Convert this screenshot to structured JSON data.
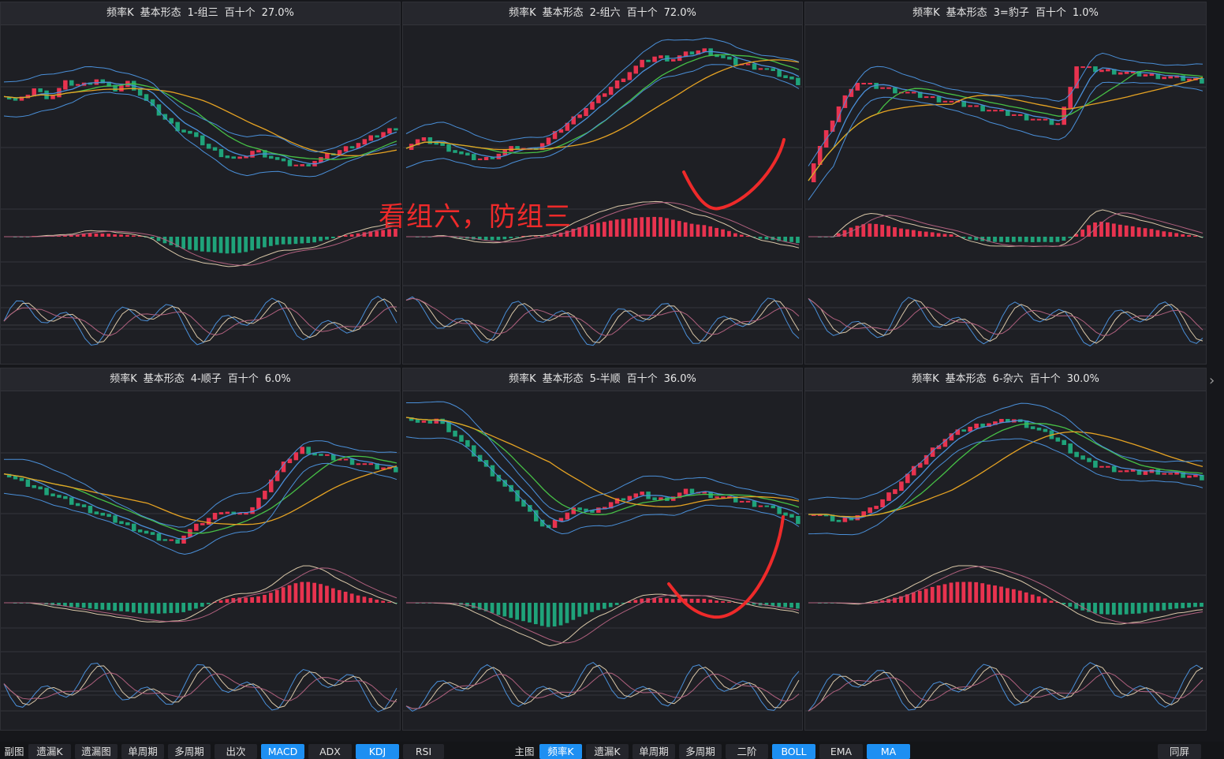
{
  "panels": [
    {
      "name": "频率K",
      "form": "基本形态",
      "pattern": "1-组三",
      "unit": "百十个",
      "pct": "27.0%"
    },
    {
      "name": "频率K",
      "form": "基本形态",
      "pattern": "2-组六",
      "unit": "百十个",
      "pct": "72.0%"
    },
    {
      "name": "频率K",
      "form": "基本形态",
      "pattern": "3=豹子",
      "unit": "百十个",
      "pct": "1.0%"
    },
    {
      "name": "频率K",
      "form": "基本形态",
      "pattern": "4-顺子",
      "unit": "百十个",
      "pct": "6.0%"
    },
    {
      "name": "频率K",
      "form": "基本形态",
      "pattern": "5-半顺",
      "unit": "百十个",
      "pct": "36.0%"
    },
    {
      "name": "频率K",
      "form": "基本形态",
      "pattern": "6-杂六",
      "unit": "百十个",
      "pct": "30.0%"
    }
  ],
  "annotation": "看组六，防组三",
  "toolbar": {
    "left_label": "副图",
    "left": [
      {
        "label": "遗漏K",
        "active": false
      },
      {
        "label": "遗漏图",
        "active": false
      },
      {
        "label": "单周期",
        "active": false
      },
      {
        "label": "多周期",
        "active": false
      },
      {
        "label": "出次",
        "active": false
      },
      {
        "label": "MACD",
        "active": true
      },
      {
        "label": "ADX",
        "active": false
      },
      {
        "label": "KDJ",
        "active": true
      },
      {
        "label": "RSI",
        "active": false
      }
    ],
    "right_label": "主图",
    "right": [
      {
        "label": "频率K",
        "active": true
      },
      {
        "label": "遗漏K",
        "active": false
      },
      {
        "label": "单周期",
        "active": false
      },
      {
        "label": "多周期",
        "active": false
      },
      {
        "label": "二阶",
        "active": false
      },
      {
        "label": "BOLL",
        "active": true
      },
      {
        "label": "EMA",
        "active": false
      },
      {
        "label": "MA",
        "active": true
      }
    ],
    "fullscreen": "同屏"
  },
  "nav_arrow": "›",
  "colors": {
    "up": "#e8334f",
    "down": "#1fa37a",
    "boll": "#4a8fd8",
    "ma_fast": "#4a8fd8",
    "ma_mid": "#46c046",
    "ma_slow": "#e6a323",
    "k": "#d9c7a8",
    "d": "#b0607e",
    "j": "#4a8fd8",
    "annotation": "#ee2a2a"
  },
  "chart_data": [
    {
      "type": "candlestick",
      "title": "频率K 基本形态 1-组三 百十个 27.0%",
      "trend": [
        0.62,
        0.58,
        0.66,
        0.6,
        0.7,
        0.68,
        0.72,
        0.65,
        0.7,
        0.6,
        0.5,
        0.42,
        0.38,
        0.3,
        0.25,
        0.22,
        0.28,
        0.24,
        0.2,
        0.18,
        0.22,
        0.26,
        0.3,
        0.34,
        0.38,
        0.42
      ],
      "indicators": [
        "BOLL",
        "MA",
        "MACD",
        "KDJ"
      ]
    },
    {
      "type": "candlestick",
      "title": "频率K 基本形态 2-组六 百十个 72.0%",
      "trend": [
        0.3,
        0.35,
        0.32,
        0.28,
        0.24,
        0.22,
        0.26,
        0.3,
        0.28,
        0.34,
        0.42,
        0.5,
        0.58,
        0.66,
        0.74,
        0.82,
        0.86,
        0.84,
        0.88,
        0.9,
        0.86,
        0.82,
        0.8,
        0.78,
        0.74,
        0.7
      ],
      "indicators": [
        "BOLL",
        "MA",
        "MACD",
        "KDJ"
      ]
    },
    {
      "type": "candlestick",
      "title": "频率K 基本形态 3=豹子 百十个 1.0%",
      "trend": [
        0.1,
        0.35,
        0.55,
        0.7,
        0.68,
        0.66,
        0.64,
        0.62,
        0.6,
        0.58,
        0.56,
        0.54,
        0.52,
        0.5,
        0.48,
        0.46,
        0.44,
        0.8,
        0.78,
        0.77,
        0.76,
        0.75,
        0.74,
        0.73,
        0.72,
        0.71
      ],
      "indicators": [
        "BOLL",
        "MA",
        "MACD",
        "KDJ"
      ]
    },
    {
      "type": "candlestick",
      "title": "频率K 基本形态 4-顺子 百十个 6.0%",
      "trend": [
        0.55,
        0.5,
        0.46,
        0.42,
        0.38,
        0.34,
        0.3,
        0.26,
        0.22,
        0.18,
        0.14,
        0.12,
        0.2,
        0.26,
        0.32,
        0.28,
        0.34,
        0.5,
        0.62,
        0.7,
        0.66,
        0.64,
        0.62,
        0.6,
        0.58,
        0.57
      ],
      "indicators": [
        "BOLL",
        "MA",
        "MACD",
        "KDJ"
      ]
    },
    {
      "type": "candlestick",
      "title": "频率K 基本形态 5-半顺 百十个 36.0%",
      "trend": [
        0.9,
        0.85,
        0.88,
        0.8,
        0.7,
        0.6,
        0.5,
        0.4,
        0.3,
        0.2,
        0.28,
        0.34,
        0.3,
        0.36,
        0.4,
        0.42,
        0.38,
        0.4,
        0.44,
        0.42,
        0.4,
        0.38,
        0.36,
        0.34,
        0.3,
        0.25
      ],
      "indicators": [
        "BOLL",
        "MA",
        "MACD",
        "KDJ"
      ]
    },
    {
      "type": "candlestick",
      "title": "频率K 基本形态 6-杂六 百十个 30.0%",
      "trend": [
        0.3,
        0.28,
        0.25,
        0.28,
        0.32,
        0.4,
        0.5,
        0.6,
        0.7,
        0.78,
        0.82,
        0.85,
        0.86,
        0.88,
        0.84,
        0.8,
        0.74,
        0.66,
        0.6,
        0.58,
        0.56,
        0.55,
        0.56,
        0.54,
        0.53,
        0.52
      ],
      "indicators": [
        "BOLL",
        "MA",
        "MACD",
        "KDJ"
      ]
    }
  ]
}
